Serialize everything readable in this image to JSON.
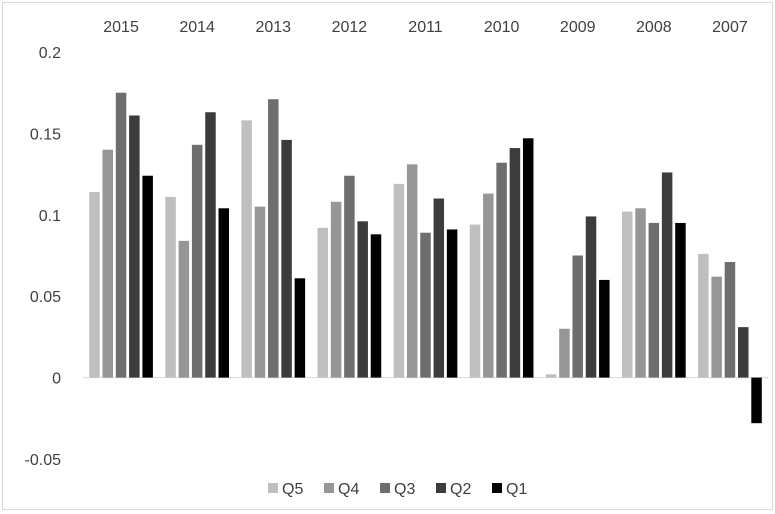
{
  "chart_data": {
    "type": "bar",
    "categories": [
      "2015",
      "2014",
      "2013",
      "2012",
      "2011",
      "2010",
      "2009",
      "2008",
      "2007"
    ],
    "series": [
      {
        "name": "Q5",
        "color": "#bfbfbf",
        "values": [
          0.114,
          0.111,
          0.158,
          0.092,
          0.119,
          0.094,
          0.002,
          0.102,
          0.076
        ]
      },
      {
        "name": "Q4",
        "color": "#969696",
        "values": [
          0.14,
          0.084,
          0.105,
          0.108,
          0.131,
          0.113,
          0.03,
          0.104,
          0.062
        ]
      },
      {
        "name": "Q3",
        "color": "#6e6e6e",
        "values": [
          0.175,
          0.143,
          0.171,
          0.124,
          0.089,
          0.132,
          0.075,
          0.095,
          0.071
        ]
      },
      {
        "name": "Q2",
        "color": "#3c3c3c",
        "values": [
          0.161,
          0.163,
          0.146,
          0.096,
          0.11,
          0.141,
          0.099,
          0.126,
          0.031
        ]
      },
      {
        "name": "Q1",
        "color": "#000000",
        "values": [
          0.124,
          0.104,
          0.061,
          0.088,
          0.091,
          0.147,
          0.06,
          0.095,
          -0.028
        ]
      }
    ],
    "y_ticks": [
      "0.2",
      "0.15",
      "0.1",
      "0.05",
      "0",
      "-0.05"
    ],
    "ylim": [
      -0.05,
      0.2
    ],
    "category_axis_position": "top",
    "grid": false,
    "legend_position": "bottom"
  }
}
